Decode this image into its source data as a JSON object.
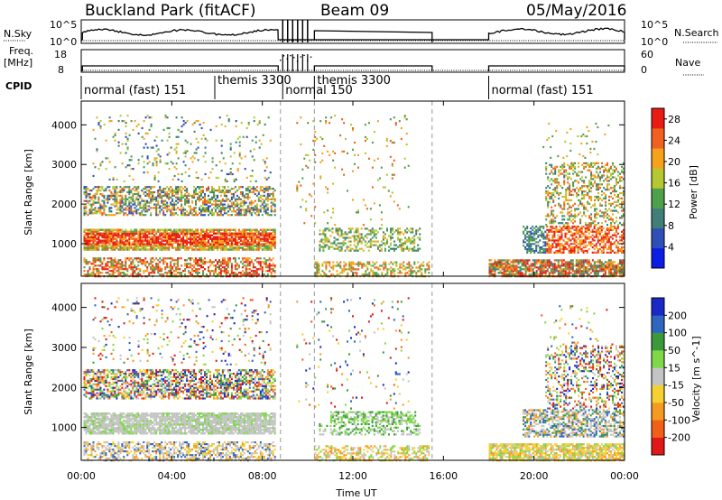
{
  "header": {
    "title": "Buckland Park (fitACF)",
    "beam": "Beam 09",
    "date": "05/May/2016"
  },
  "panels": {
    "nsky_label": "N.Sky",
    "nsky_ticks": [
      "10^5",
      "10^0"
    ],
    "nsky_right_ticks": [
      "10^5",
      "10^0"
    ],
    "nsearch_label": "N.Search",
    "freq_label_1": "Freq.",
    "freq_label_2": "[MHz]",
    "freq_ticks": [
      "18",
      "8"
    ],
    "nave_label": "Nave",
    "nave_ticks": [
      "60",
      "0"
    ],
    "cpid_label": "CPID"
  },
  "cpid_segments": [
    {
      "label": "normal (fast) 151",
      "start": 0.0,
      "end": 5.9
    },
    {
      "label": "themis 3300",
      "start": 5.9,
      "end": 8.9
    },
    {
      "label": "normal 150",
      "start": 8.9,
      "end": 10.3
    },
    {
      "label": "themis 3300",
      "start": 10.3,
      "end": 15.5
    },
    {
      "label": "normal (fast) 151",
      "start": 18.0,
      "end": 24.0
    }
  ],
  "chart_data": [
    {
      "type": "heatmap",
      "name": "Power",
      "xlabel": "Time UT",
      "ylabel": "Slant Range [km]",
      "xlim": [
        0,
        24
      ],
      "ylim": [
        180,
        4600
      ],
      "yticks": [
        1000,
        2000,
        3000,
        4000
      ],
      "colorbar_label": "Power [dB]",
      "colorbar_ticks": [
        4,
        8,
        12,
        16,
        20,
        24,
        28
      ],
      "colorbar_range": [
        0,
        30
      ],
      "colors": [
        "#0a1ee6",
        "#2f4fb8",
        "#3f7f78",
        "#4fa04a",
        "#b5c832",
        "#f5a21a",
        "#f06020",
        "#e81c14"
      ]
    },
    {
      "type": "heatmap",
      "name": "Velocity",
      "xlabel": "Time UT",
      "ylabel": "Slant Range [km]",
      "xlim": [
        0,
        24
      ],
      "ylim": [
        180,
        4600
      ],
      "yticks": [
        1000,
        2000,
        3000,
        4000
      ],
      "colorbar_label": "Velocity [m s^-1]",
      "colorbar_ticks": [
        200,
        100,
        50,
        15,
        -15,
        -50,
        -100,
        -200
      ],
      "colors": [
        "#1a28c8",
        "#2f66c0",
        "#3a9a3a",
        "#7ed84a",
        "#c4c4c4",
        "#f5d030",
        "#f59a20",
        "#f06018",
        "#e01818"
      ]
    }
  ],
  "xticks": [
    "00:00",
    "04:00",
    "08:00",
    "12:00",
    "16:00",
    "20:00",
    "00:00"
  ],
  "xlabel": "Time UT"
}
